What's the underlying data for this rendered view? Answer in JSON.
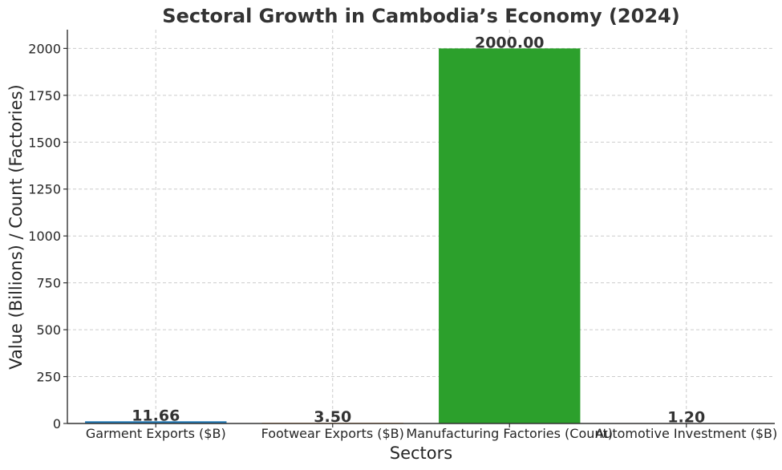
{
  "chart_data": {
    "type": "bar",
    "title": "Sectoral Growth in Cambodia’s Economy (2024)",
    "xlabel": "Sectors",
    "ylabel": "Value (Billions) / Count (Factories)",
    "categories": [
      "Garment Exports ($B)",
      "Footwear Exports ($B)",
      "Manufacturing Factories (Count)",
      "Automotive Investment ($B)"
    ],
    "values": [
      11.66,
      3.5,
      2000,
      1.2
    ],
    "data_labels": [
      "11.66",
      "3.50",
      "2000.00",
      "1.20"
    ],
    "colors": [
      "#1f77b4",
      "#ff7f0e",
      "#2ca02c",
      "#d62728"
    ],
    "ylim": [
      0,
      2100
    ],
    "yticks": [
      0,
      250,
      500,
      750,
      1000,
      1250,
      1500,
      1750,
      2000
    ],
    "ytick_labels": [
      "0",
      "250",
      "500",
      "750",
      "1000",
      "1250",
      "1500",
      "1750",
      "2000"
    ],
    "grid": true
  }
}
